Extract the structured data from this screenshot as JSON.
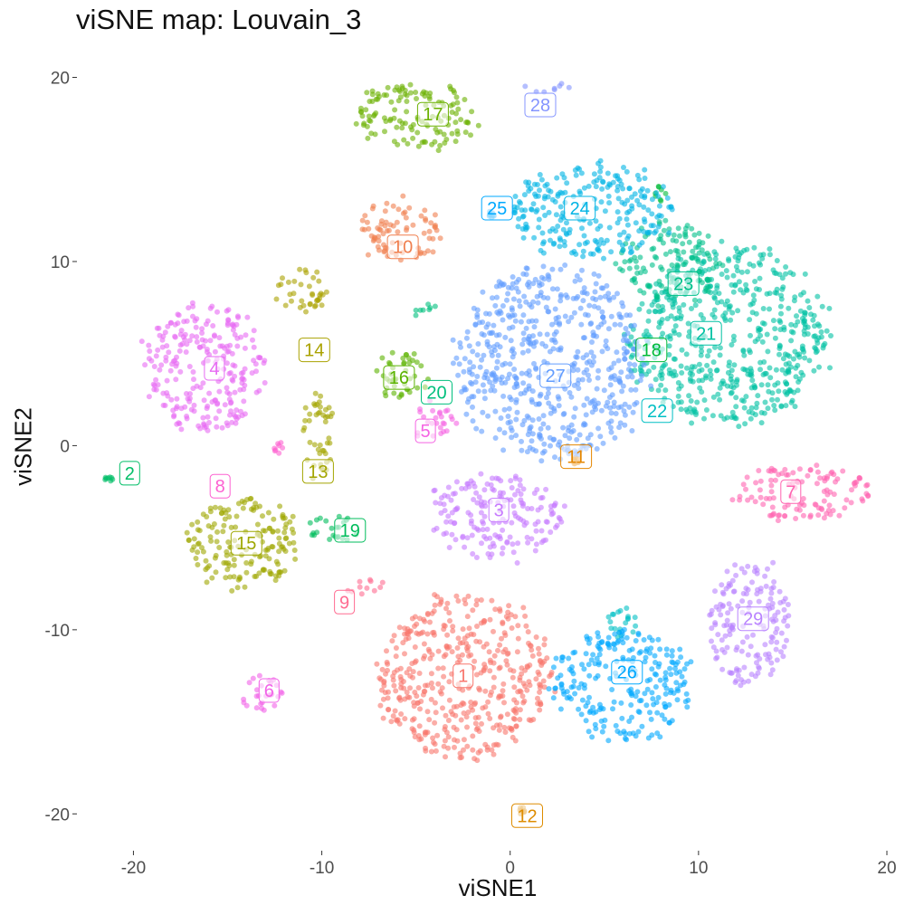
{
  "chart_data": {
    "type": "scatter",
    "title": "viSNE map: Louvain_3",
    "xlabel": "viSNE1",
    "ylabel": "viSNE2",
    "xlim": [
      -23,
      20
    ],
    "ylim": [
      -22,
      21.5
    ],
    "xticks": [
      -20,
      -10,
      0,
      10,
      20
    ],
    "yticks": [
      -20,
      -10,
      0,
      10,
      20
    ],
    "grid": false,
    "legend": "none",
    "clusters": [
      {
        "label": "1",
        "color": "#F8766D",
        "x": -2.5,
        "y": -12.5,
        "rx": 4.6,
        "ry": 4.4
      },
      {
        "label": "2",
        "color": "#00BE67",
        "x": -21.3,
        "y": -1.8,
        "rx": 0.2,
        "ry": 0.15
      },
      {
        "label": "3",
        "color": "#C77CFF",
        "x": -0.8,
        "y": -3.8,
        "rx": 3.5,
        "ry": 2.3
      },
      {
        "label": "4",
        "color": "#E76BF3",
        "x": -16.2,
        "y": 4.2,
        "rx": 3.2,
        "ry": 3.5
      },
      {
        "label": "5",
        "color": "#F564E3",
        "x": -4.1,
        "y": 1.4,
        "rx": 1.2,
        "ry": 1.0
      },
      {
        "label": "6",
        "color": "#F263E8",
        "x": -13.2,
        "y": -13.4,
        "rx": 1.1,
        "ry": 1.1
      },
      {
        "label": "7",
        "color": "#FF64B0",
        "x": 15.5,
        "y": -2.5,
        "rx": 3.6,
        "ry": 1.5
      },
      {
        "label": "8",
        "color": "#FD61D1",
        "x": -12.2,
        "y": -0.1,
        "rx": 0.35,
        "ry": 0.35
      },
      {
        "label": "9",
        "color": "#FF6C91",
        "x": -7.6,
        "y": -7.7,
        "rx": 1.3,
        "ry": 0.4
      },
      {
        "label": "10",
        "color": "#F07F4E",
        "x": -5.8,
        "y": 11.6,
        "rx": 2.1,
        "ry": 1.7
      },
      {
        "label": "11",
        "color": "#E58700",
        "x": 3.5,
        "y": -0.8,
        "rx": 0.2,
        "ry": 0.2
      },
      {
        "label": "12",
        "color": "#DE8C00",
        "x": 0.6,
        "y": -19.8,
        "rx": 0.2,
        "ry": 0.2
      },
      {
        "label": "13",
        "color": "#A3A500",
        "x": -10.2,
        "y": 0.5,
        "rx": 0.8,
        "ry": 2.5
      },
      {
        "label": "14",
        "color": "#AAA200",
        "x": -11.0,
        "y": 8.5,
        "rx": 1.4,
        "ry": 1.2
      },
      {
        "label": "15",
        "color": "#9EA700",
        "x": -14.2,
        "y": -5.3,
        "rx": 3.0,
        "ry": 2.5
      },
      {
        "label": "16",
        "color": "#5BB300",
        "x": -5.8,
        "y": 3.8,
        "rx": 1.5,
        "ry": 1.3
      },
      {
        "label": "17",
        "color": "#6BB100",
        "x": -5.0,
        "y": 17.9,
        "rx": 3.3,
        "ry": 1.8
      },
      {
        "label": "18",
        "color": "#00BA38",
        "x": 8.0,
        "y": 13.7,
        "rx": 0.4,
        "ry": 0.4
      },
      {
        "label": "19",
        "color": "#00BD5C",
        "x": -9.5,
        "y": -4.5,
        "rx": 1.3,
        "ry": 0.8
      },
      {
        "label": "20",
        "color": "#00BF7D",
        "x": -4.5,
        "y": 7.3,
        "rx": 0.7,
        "ry": 0.4
      },
      {
        "label": "21",
        "color": "#00C1A3",
        "x": 11.5,
        "y": 6.0,
        "rx": 5.3,
        "ry": 4.8
      },
      {
        "label": "22",
        "color": "#00BFC4",
        "x": 5.8,
        "y": -9.6,
        "rx": 1.0,
        "ry": 0.9
      },
      {
        "label": "23",
        "color": "#00C08B",
        "x": 8.5,
        "y": 10.0,
        "rx": 2.7,
        "ry": 2.2
      },
      {
        "label": "24",
        "color": "#00B4E4",
        "x": 4.3,
        "y": 12.8,
        "rx": 4.2,
        "ry": 2.6
      },
      {
        "label": "25",
        "color": "#00A9FF",
        "x": -1.0,
        "y": 12.6,
        "rx": 0.2,
        "ry": 0.2
      },
      {
        "label": "26",
        "color": "#00A9FF",
        "x": 6.0,
        "y": -13.0,
        "rx": 3.7,
        "ry": 3.0
      },
      {
        "label": "27",
        "color": "#619CFF",
        "x": 2.2,
        "y": 4.5,
        "rx": 5.0,
        "ry": 5.2
      },
      {
        "label": "28",
        "color": "#8494FF",
        "x": 2.0,
        "y": 19.5,
        "rx": 1.2,
        "ry": 0.3
      },
      {
        "label": "29",
        "color": "#B983FF",
        "x": 12.7,
        "y": -9.7,
        "rx": 2.2,
        "ry": 3.3
      }
    ],
    "label_positions": [
      {
        "label": "1",
        "x": -2.5,
        "y": -12.5
      },
      {
        "label": "2",
        "x": -20.2,
        "y": -1.5
      },
      {
        "label": "3",
        "x": -0.6,
        "y": -3.5
      },
      {
        "label": "4",
        "x": -15.7,
        "y": 4.2
      },
      {
        "label": "5",
        "x": -4.5,
        "y": 0.8
      },
      {
        "label": "6",
        "x": -12.8,
        "y": -13.3
      },
      {
        "label": "7",
        "x": 14.9,
        "y": -2.5
      },
      {
        "label": "8",
        "x": -15.4,
        "y": -2.2
      },
      {
        "label": "9",
        "x": -8.8,
        "y": -8.5
      },
      {
        "label": "10",
        "x": -5.7,
        "y": 10.8
      },
      {
        "label": "11",
        "x": 3.5,
        "y": -0.6
      },
      {
        "label": "12",
        "x": 0.9,
        "y": -20.1
      },
      {
        "label": "13",
        "x": -10.2,
        "y": -1.4
      },
      {
        "label": "14",
        "x": -10.4,
        "y": 5.2
      },
      {
        "label": "15",
        "x": -14.0,
        "y": -5.3
      },
      {
        "label": "16",
        "x": -5.9,
        "y": 3.7
      },
      {
        "label": "17",
        "x": -4.1,
        "y": 18.0
      },
      {
        "label": "18",
        "x": 7.5,
        "y": 5.2
      },
      {
        "label": "19",
        "x": -8.5,
        "y": -4.6
      },
      {
        "label": "20",
        "x": -3.9,
        "y": 2.9
      },
      {
        "label": "21",
        "x": 10.4,
        "y": 6.1
      },
      {
        "label": "22",
        "x": 7.8,
        "y": 1.9
      },
      {
        "label": "23",
        "x": 9.2,
        "y": 8.8
      },
      {
        "label": "24",
        "x": 3.7,
        "y": 12.9
      },
      {
        "label": "25",
        "x": -0.7,
        "y": 12.9
      },
      {
        "label": "26",
        "x": 6.2,
        "y": -12.3
      },
      {
        "label": "27",
        "x": 2.4,
        "y": 3.8
      },
      {
        "label": "28",
        "x": 1.6,
        "y": 18.5
      },
      {
        "label": "29",
        "x": 12.9,
        "y": -9.4
      }
    ]
  }
}
